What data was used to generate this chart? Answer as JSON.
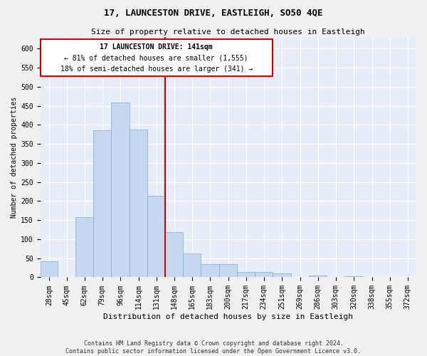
{
  "title": "17, LAUNCESTON DRIVE, EASTLEIGH, SO50 4QE",
  "subtitle": "Size of property relative to detached houses in Eastleigh",
  "xlabel": "Distribution of detached houses by size in Eastleigh",
  "ylabel": "Number of detached properties",
  "footnote1": "Contains HM Land Registry data © Crown copyright and database right 2024.",
  "footnote2": "Contains public sector information licensed under the Open Government Licence v3.0.",
  "annotation_line1": "17 LAUNCESTON DRIVE: 141sqm",
  "annotation_line2": "← 81% of detached houses are smaller (1,555)",
  "annotation_line3": "18% of semi-detached houses are larger (341) →",
  "bar_color": "#c5d8f0",
  "bar_edge_color": "#7baad4",
  "vline_color": "#cc0000",
  "annotation_box_color": "#cc0000",
  "background_color": "#e8eef8",
  "grid_color": "#ffffff",
  "fig_background": "#f0f0f0",
  "categories": [
    "28sqm",
    "45sqm",
    "62sqm",
    "79sqm",
    "96sqm",
    "114sqm",
    "131sqm",
    "148sqm",
    "165sqm",
    "183sqm",
    "200sqm",
    "217sqm",
    "234sqm",
    "251sqm",
    "269sqm",
    "286sqm",
    "303sqm",
    "320sqm",
    "338sqm",
    "355sqm",
    "372sqm"
  ],
  "bin_edges": [
    19.5,
    36.5,
    53.5,
    70.5,
    87.5,
    105.5,
    122.5,
    139.5,
    156.5,
    173.5,
    191.5,
    208.5,
    225.5,
    242.5,
    260.5,
    277.5,
    294.5,
    311.5,
    329.5,
    346.5,
    363.5,
    380.5
  ],
  "bar_heights": [
    42,
    0,
    157,
    385,
    458,
    387,
    213,
    118,
    62,
    35,
    35,
    14,
    14,
    10,
    0,
    5,
    0,
    3,
    0,
    0,
    0
  ],
  "ylim": [
    0,
    630
  ],
  "yticks": [
    0,
    50,
    100,
    150,
    200,
    250,
    300,
    350,
    400,
    450,
    500,
    550,
    600
  ],
  "title_fontsize": 9,
  "subtitle_fontsize": 8,
  "xlabel_fontsize": 8,
  "ylabel_fontsize": 7,
  "tick_fontsize": 7,
  "footnote_fontsize": 6,
  "annot_fontsize": 7
}
